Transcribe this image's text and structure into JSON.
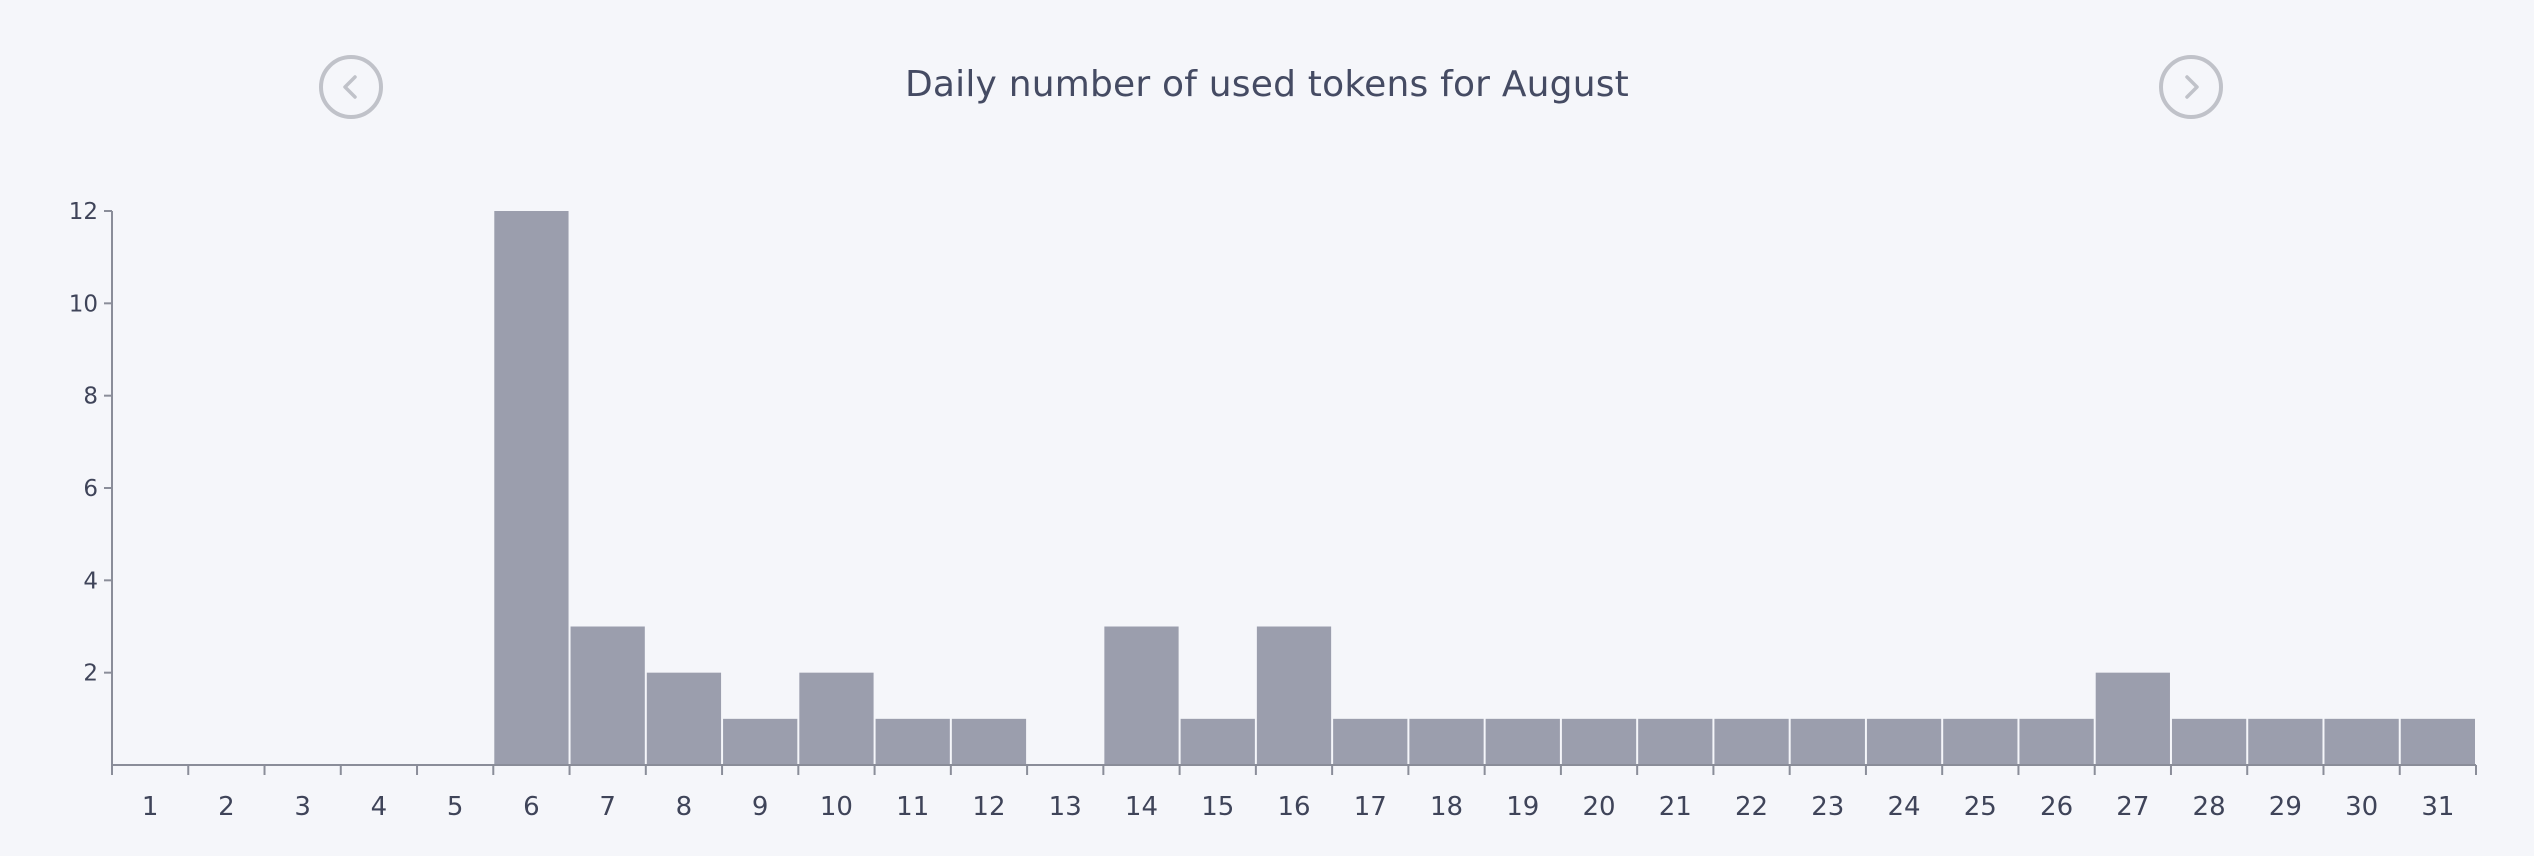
{
  "header": {
    "title": "Daily number of used tokens for August",
    "prev_icon": "chevron-left-icon",
    "next_icon": "chevron-right-icon"
  },
  "colors": {
    "background": "#f5f6fa",
    "bar": "#9b9ead",
    "axis": "#8a8d99",
    "text": "#3f4459",
    "nav_circle": "#c0c2c9"
  },
  "chart_data": {
    "type": "bar",
    "title": "Daily number of used tokens for August",
    "xlabel": "",
    "ylabel": "",
    "categories": [
      "1",
      "2",
      "3",
      "4",
      "5",
      "6",
      "7",
      "8",
      "9",
      "10",
      "11",
      "12",
      "13",
      "14",
      "15",
      "16",
      "17",
      "18",
      "19",
      "20",
      "21",
      "22",
      "23",
      "24",
      "25",
      "26",
      "27",
      "28",
      "29",
      "30",
      "31"
    ],
    "values": [
      0,
      0,
      0,
      0,
      0,
      12,
      3,
      2,
      1,
      2,
      1,
      1,
      0,
      3,
      1,
      3,
      1,
      1,
      1,
      1,
      1,
      1,
      1,
      1,
      1,
      1,
      2,
      1,
      1,
      1,
      1
    ],
    "yticks": [
      2,
      4,
      6,
      8,
      10,
      12
    ],
    "ylim": [
      0,
      12
    ],
    "grid": false,
    "legend": "none"
  }
}
